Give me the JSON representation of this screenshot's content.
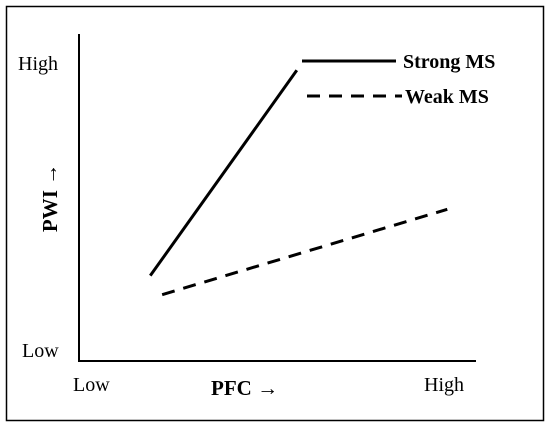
{
  "chart_data": {
    "type": "line",
    "xlabel": "PFC →",
    "ylabel": "PWI →",
    "x_ticks": [
      "Low",
      "High"
    ],
    "y_ticks": [
      "Low",
      "High"
    ],
    "xlim": [
      0,
      1
    ],
    "ylim": [
      0,
      1
    ],
    "grid": false,
    "legend_position": "top-right",
    "series": [
      {
        "name": "Strong MS",
        "line_style": "solid",
        "x": [
          0.18,
          0.55
        ],
        "y": [
          0.27,
          0.92
        ]
      },
      {
        "name": "Weak MS",
        "line_style": "dashed",
        "x": [
          0.21,
          0.93
        ],
        "y": [
          0.21,
          0.48
        ]
      }
    ],
    "colors": {
      "line": "#000000",
      "axis": "#000000",
      "frame": "#000000",
      "background": "#ffffff"
    }
  }
}
